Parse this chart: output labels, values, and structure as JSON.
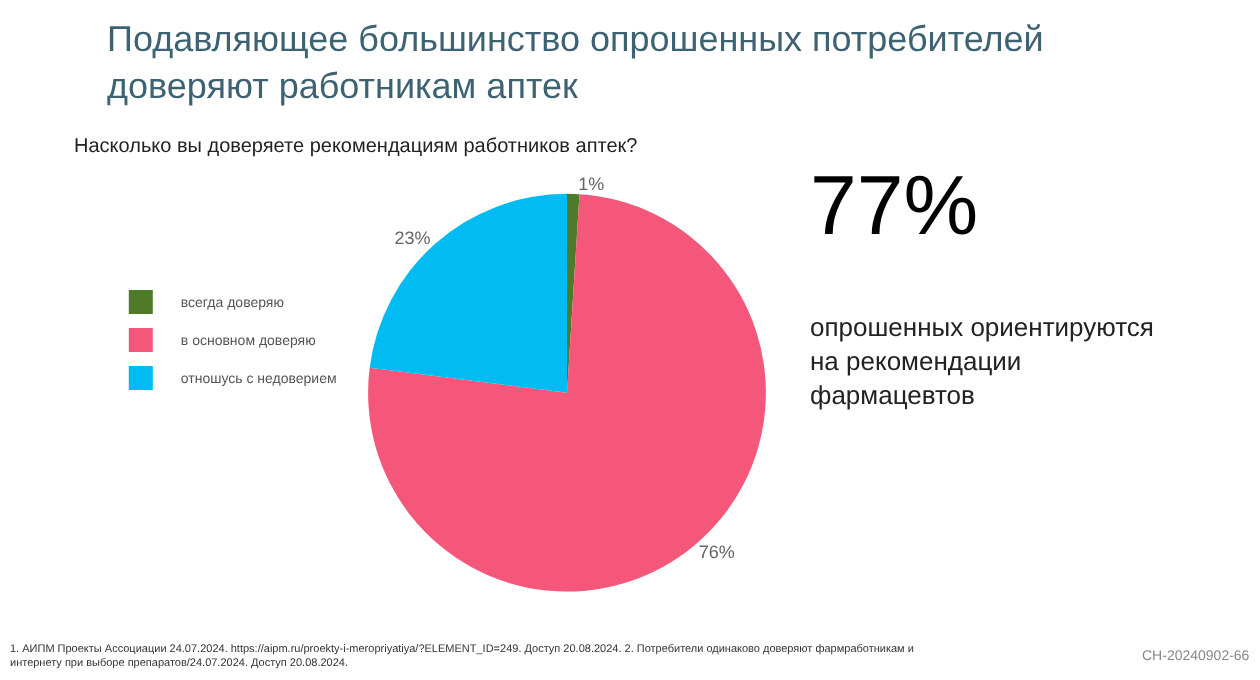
{
  "chart_data": {
    "type": "pie",
    "title": "Подавляющее большинство опрошенных потребителей доверяют работникам аптек",
    "subtitle": "Насколько вы доверяете рекомендациям работников аптек?",
    "categories": [
      "всегда доверяю",
      "в основном доверяю",
      "отношусь с недоверием"
    ],
    "values": [
      1,
      76,
      23
    ],
    "colors": [
      "#4f7a28",
      "#f4577a",
      "#00bcf2"
    ],
    "value_labels": [
      "1%",
      "76%",
      "23%"
    ],
    "legend": "left",
    "annotations": [
      "77%",
      "опрошенных ориентируются на рекомендации фармацевтов",
      "1. АИПМ Проекты Ассоциации 24.07.2024. https://aipm.ru/proekty-i-meropriyatiya/?ELEMENT_ID=249. Доступ 20.08.2024. 2. Потребители одинаково доверяют фармработникам и интернету при выборе препаратов/24.07.2024. Доступ 20.08.2024.",
      "CH-20240902-66"
    ]
  }
}
